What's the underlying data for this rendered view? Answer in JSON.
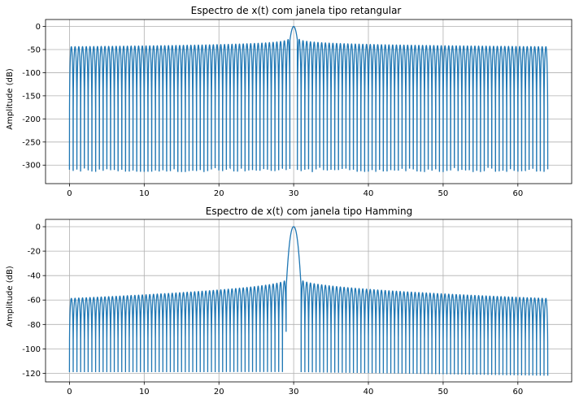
{
  "chart_data": [
    {
      "type": "line",
      "title": "Espectro de x(t) com janela tipo retangular",
      "xlabel": "",
      "ylabel": "Amplitude (dB)",
      "xlim": [
        -3.2,
        67.2
      ],
      "ylim": [
        -340,
        15
      ],
      "xticks": [
        0,
        10,
        20,
        30,
        40,
        50,
        60
      ],
      "yticks": [
        0,
        -50,
        -100,
        -150,
        -200,
        -250,
        -300
      ],
      "grid": true,
      "color": "#1f77b4",
      "series": [
        {
          "name": "",
          "x_range": [
            0,
            64
          ],
          "peak_x": 30,
          "peak_y": 0,
          "sidelobe_start_y": -44,
          "sidelobe_near_peak_y": -8,
          "null_floor_y": -305,
          "lobe_spacing": 0.5,
          "window": "rectangular"
        }
      ]
    },
    {
      "type": "line",
      "title": "Espectro de x(t) com janela tipo Hamming",
      "xlabel": "",
      "ylabel": "Amplitude (dB)",
      "xlim": [
        -3.2,
        67.2
      ],
      "ylim": [
        -127,
        6
      ],
      "xticks": [
        0,
        10,
        20,
        30,
        40,
        50,
        60
      ],
      "yticks": [
        0,
        -20,
        -40,
        -60,
        -80,
        -100,
        -120
      ],
      "grid": true,
      "color": "#1f77b4",
      "series": [
        {
          "name": "",
          "x_range": [
            0,
            64
          ],
          "peak_x": 30,
          "peak_y": 0,
          "sidelobe_start_y": -59,
          "sidelobe_near_peak_y": -43,
          "null_floor_y": -119,
          "lobe_spacing": 0.5,
          "window": "hamming"
        }
      ]
    }
  ]
}
